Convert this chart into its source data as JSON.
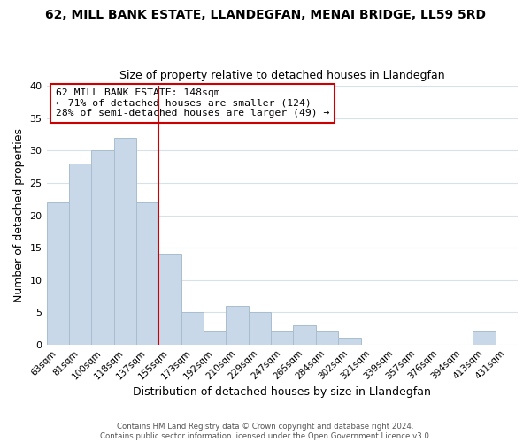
{
  "title": "62, MILL BANK ESTATE, LLANDEGFAN, MENAI BRIDGE, LL59 5RD",
  "subtitle": "Size of property relative to detached houses in Llandegfan",
  "xlabel": "Distribution of detached houses by size in Llandegfan",
  "ylabel": "Number of detached properties",
  "bar_labels": [
    "63sqm",
    "81sqm",
    "100sqm",
    "118sqm",
    "137sqm",
    "155sqm",
    "173sqm",
    "192sqm",
    "210sqm",
    "229sqm",
    "247sqm",
    "265sqm",
    "284sqm",
    "302sqm",
    "321sqm",
    "339sqm",
    "357sqm",
    "376sqm",
    "394sqm",
    "413sqm",
    "431sqm"
  ],
  "bar_values": [
    22,
    28,
    30,
    32,
    22,
    14,
    5,
    2,
    6,
    5,
    2,
    3,
    2,
    1,
    0,
    0,
    0,
    0,
    0,
    2,
    0
  ],
  "bar_color": "#c8d8e8",
  "bar_edge_color": "#a8bece",
  "vline_color": "#cc0000",
  "annotation_title": "62 MILL BANK ESTATE: 148sqm",
  "annotation_line1": "← 71% of detached houses are smaller (124)",
  "annotation_line2": "28% of semi-detached houses are larger (49) →",
  "annotation_box_color": "#ffffff",
  "annotation_box_edge": "#cc0000",
  "ylim": [
    0,
    40
  ],
  "yticks": [
    0,
    5,
    10,
    15,
    20,
    25,
    30,
    35,
    40
  ],
  "footer1": "Contains HM Land Registry data © Crown copyright and database right 2024.",
  "footer2": "Contains public sector information licensed under the Open Government Licence v3.0.",
  "background_color": "#ffffff",
  "grid_color": "#d8e0e8"
}
